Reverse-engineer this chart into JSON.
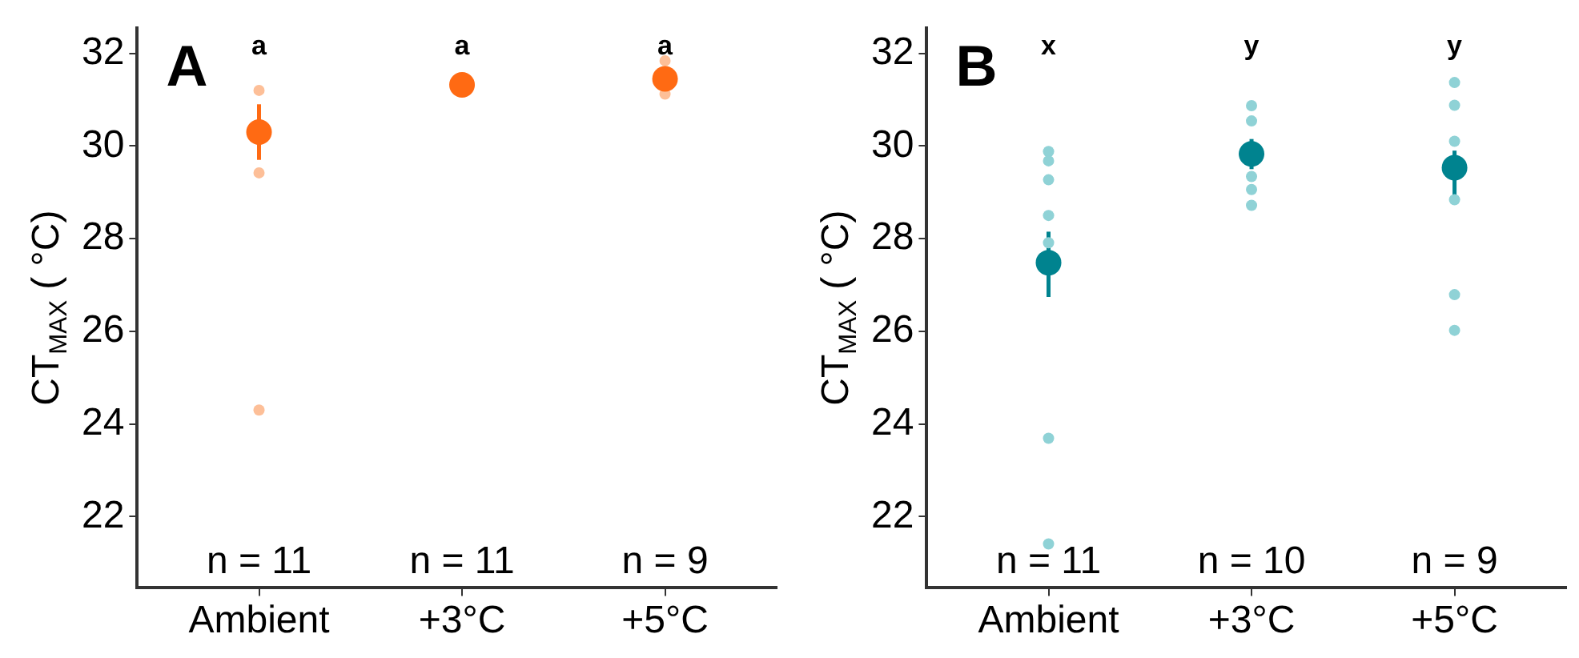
{
  "chart_data": [
    {
      "type": "scatter",
      "title": "A",
      "ylabel": "CT$_{MAX}$ ( °C)",
      "categories": [
        "Ambient",
        "+3°C",
        "+5°C"
      ],
      "ylim": [
        20.46,
        32.55
      ],
      "yticks": [
        22,
        24,
        26,
        28,
        30,
        32
      ],
      "grid": false,
      "legend": false,
      "marker": "circle",
      "series": [
        {
          "color": "#fdbf98",
          "x": [
            "Ambient",
            "Ambient",
            "Ambient",
            "+5°C",
            "+5°C"
          ],
          "values": [
            31.2,
            29.42,
            24.3,
            31.84,
            31.12
          ]
        },
        {
          "color": "#ff6a13",
          "x": [
            "Ambient",
            "+3°C",
            "+5°C"
          ],
          "values": [
            30.3,
            31.32,
            31.45
          ],
          "errors": [
            [
              29.7,
              30.9
            ],
            null,
            null
          ]
        }
      ],
      "annotations": [
        "a",
        "a",
        "a",
        "n = 11",
        "n = 11",
        "n = 9"
      ]
    },
    {
      "type": "scatter",
      "title": "B",
      "ylabel": "CT$_{MAX}$ ( °C)",
      "categories": [
        "Ambient",
        "+3°C",
        "+5°C"
      ],
      "ylim": [
        20.46,
        32.55
      ],
      "yticks": [
        22,
        24,
        26,
        28,
        30,
        32
      ],
      "grid": false,
      "legend": false,
      "marker": "circle",
      "series": [
        {
          "color": "#8fd2d6",
          "x": [
            "Ambient",
            "Ambient",
            "Ambient",
            "Ambient",
            "Ambient",
            "Ambient",
            "Ambient",
            "Ambient",
            "Ambient",
            "+3°C",
            "+3°C",
            "+3°C",
            "+3°C",
            "+3°C",
            "+5°C",
            "+5°C",
            "+5°C",
            "+5°C",
            "+5°C",
            "+5°C"
          ],
          "values": [
            29.88,
            29.68,
            29.27,
            28.5,
            null,
            27.91,
            23.69,
            21.41,
            null,
            30.87,
            30.54,
            29.34,
            29.06,
            28.72,
            31.37,
            30.88,
            30.1,
            28.84,
            26.79,
            26.02
          ]
        },
        {
          "color": "#00838f",
          "x": [
            "Ambient",
            "+3°C",
            "+5°C"
          ],
          "values": [
            27.48,
            29.83,
            29.53
          ],
          "errors": [
            [
              26.74,
              28.15
            ],
            [
              29.5,
              30.15
            ],
            [
              28.95,
              29.9
            ]
          ]
        }
      ],
      "annotations": [
        "x",
        "y",
        "y",
        "n = 11",
        "n = 10",
        "n = 9"
      ]
    }
  ]
}
